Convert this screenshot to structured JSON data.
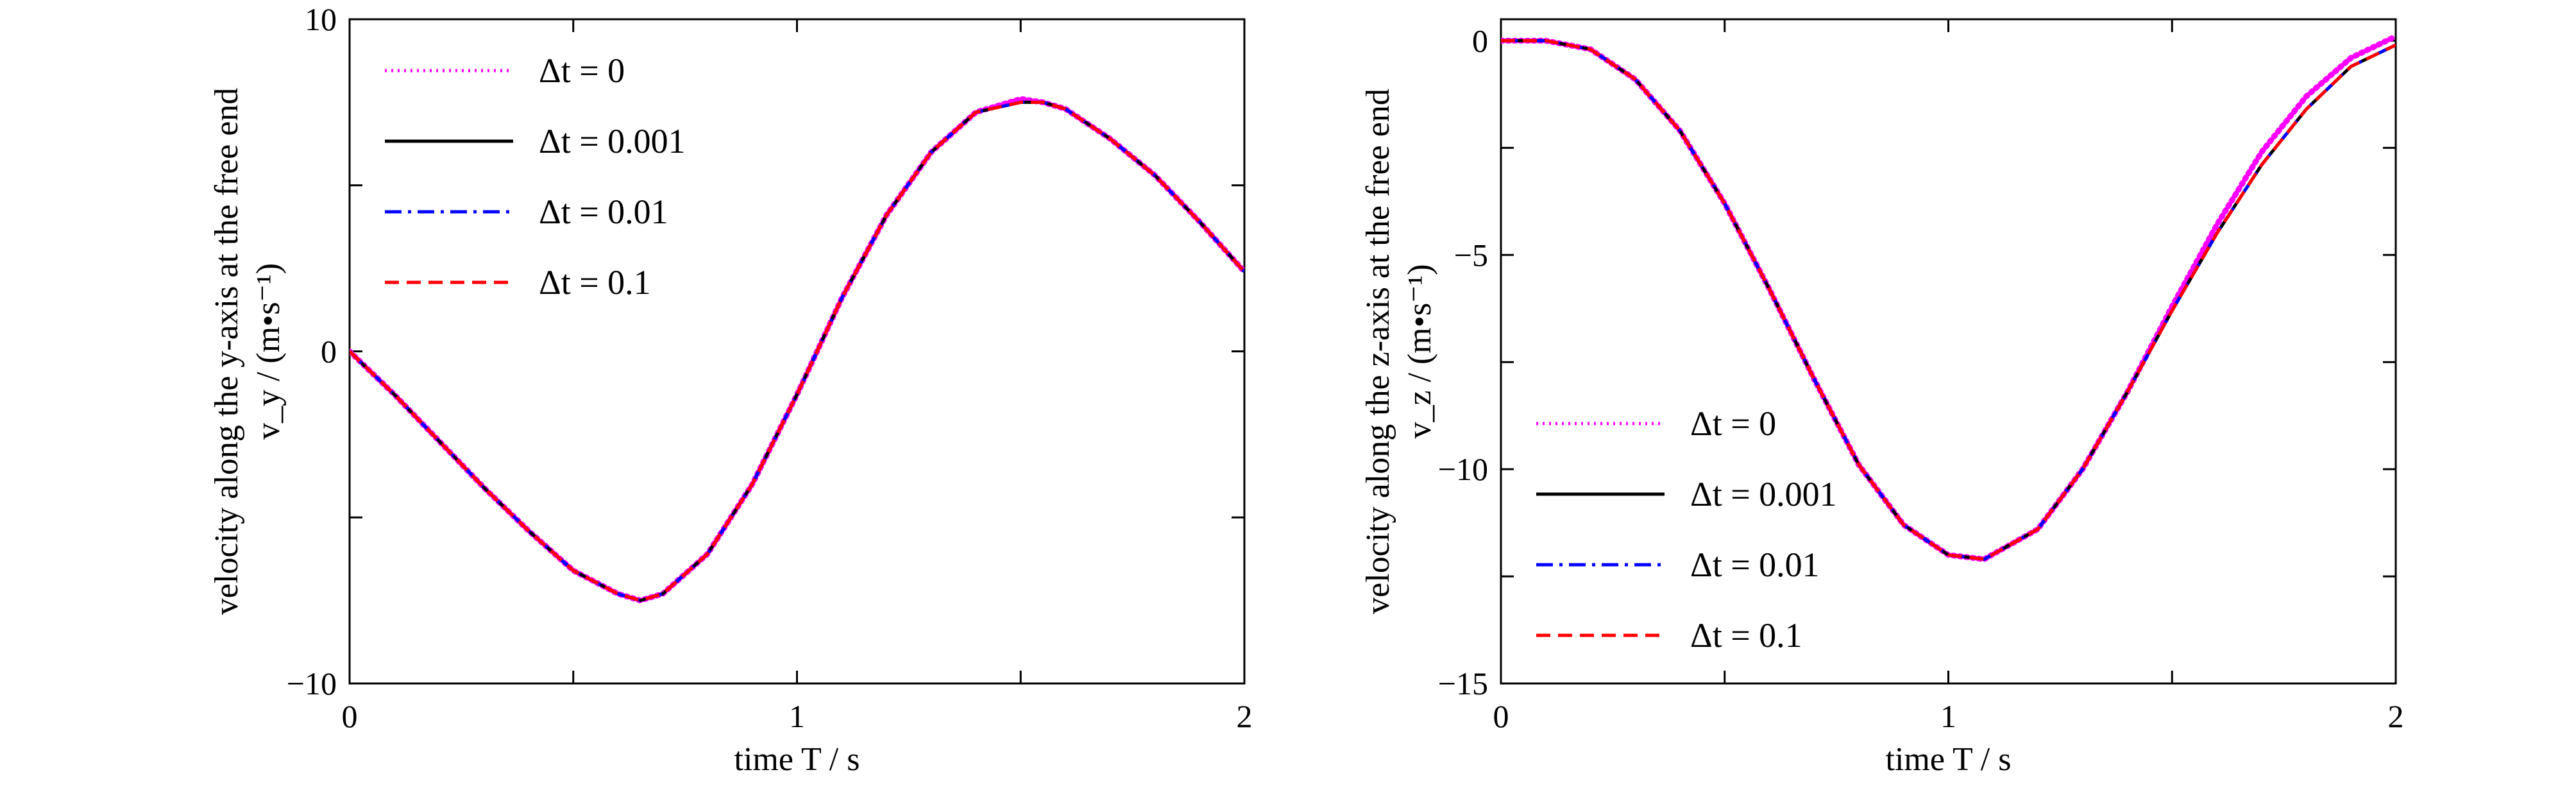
{
  "chart_data": [
    {
      "type": "line",
      "xlabel": "time T / s",
      "ylabel_line1": "velocity along the y-axis at the free end",
      "ylabel_line2": "v_y / (m•s⁻¹)",
      "xlim": [
        0,
        2
      ],
      "ylim": [
        -10,
        10
      ],
      "xticks": [
        0,
        1,
        2
      ],
      "xtick_labels": [
        "0",
        "1",
        "2"
      ],
      "yticks": [
        -10,
        0,
        10
      ],
      "ytick_labels": [
        "−10",
        "0",
        "10"
      ],
      "grid": false,
      "legend_position": "top-left",
      "x": [
        0,
        0.1,
        0.2,
        0.3,
        0.4,
        0.5,
        0.6,
        0.65,
        0.7,
        0.8,
        0.9,
        1.0,
        1.1,
        1.2,
        1.3,
        1.4,
        1.5,
        1.55,
        1.6,
        1.7,
        1.8,
        1.9,
        2.0
      ],
      "series": [
        {
          "name": "Δt = 0",
          "color": "#ff00ff",
          "dash": "dotted",
          "values": [
            0,
            -1.3,
            -2.7,
            -4.1,
            -5.4,
            -6.6,
            -7.3,
            -7.5,
            -7.3,
            -6.1,
            -4.0,
            -1.3,
            1.6,
            4.1,
            6.0,
            7.2,
            7.6,
            7.5,
            7.3,
            6.4,
            5.3,
            3.9,
            2.4
          ]
        },
        {
          "name": "Δt = 0.001",
          "color": "#000000",
          "dash": "solid",
          "values": [
            0,
            -1.3,
            -2.7,
            -4.1,
            -5.4,
            -6.6,
            -7.3,
            -7.5,
            -7.3,
            -6.1,
            -4.0,
            -1.3,
            1.6,
            4.1,
            6.0,
            7.2,
            7.5,
            7.5,
            7.3,
            6.4,
            5.3,
            3.9,
            2.4
          ]
        },
        {
          "name": "Δt = 0.01",
          "color": "#0000ff",
          "dash": "dashdot",
          "values": [
            0,
            -1.3,
            -2.7,
            -4.1,
            -5.4,
            -6.6,
            -7.3,
            -7.5,
            -7.3,
            -6.1,
            -4.0,
            -1.3,
            1.6,
            4.1,
            6.0,
            7.2,
            7.5,
            7.5,
            7.3,
            6.4,
            5.3,
            3.9,
            2.4
          ]
        },
        {
          "name": "Δt = 0.1",
          "color": "#ff0000",
          "dash": "dashed",
          "values": [
            0,
            -1.3,
            -2.7,
            -4.1,
            -5.4,
            -6.6,
            -7.3,
            -7.5,
            -7.3,
            -6.1,
            -4.0,
            -1.3,
            1.6,
            4.1,
            6.0,
            7.2,
            7.5,
            7.5,
            7.3,
            6.4,
            5.3,
            3.9,
            2.4
          ]
        }
      ]
    },
    {
      "type": "line",
      "xlabel": "time T / s",
      "ylabel_line1": "velocity along the z-axis at the free end",
      "ylabel_line2": "v_z / (m•s⁻¹)",
      "xlim": [
        0,
        2
      ],
      "ylim": [
        -15,
        0.5
      ],
      "xticks": [
        0,
        1,
        2
      ],
      "xtick_labels": [
        "0",
        "1",
        "2"
      ],
      "yticks": [
        -15,
        -10,
        -5,
        0
      ],
      "ytick_labels": [
        "−15",
        "−10",
        "−5",
        "0"
      ],
      "grid": false,
      "legend_position": "lower-left",
      "x": [
        0,
        0.1,
        0.2,
        0.3,
        0.4,
        0.5,
        0.6,
        0.7,
        0.8,
        0.9,
        1.0,
        1.08,
        1.2,
        1.3,
        1.4,
        1.5,
        1.6,
        1.7,
        1.8,
        1.9,
        2.0
      ],
      "series": [
        {
          "name": "Δt = 0",
          "color": "#ff00ff",
          "dash": "dotted",
          "values": [
            0,
            0,
            -0.2,
            -0.9,
            -2.1,
            -3.8,
            -5.8,
            -7.9,
            -9.9,
            -11.3,
            -12.0,
            -12.1,
            -11.4,
            -10.0,
            -8.2,
            -6.2,
            -4.3,
            -2.6,
            -1.3,
            -0.4,
            0.1
          ]
        },
        {
          "name": "Δt = 0.001",
          "color": "#000000",
          "dash": "solid",
          "values": [
            0,
            0,
            -0.2,
            -0.9,
            -2.1,
            -3.8,
            -5.8,
            -7.9,
            -9.9,
            -11.3,
            -12.0,
            -12.1,
            -11.4,
            -10.0,
            -8.2,
            -6.3,
            -4.5,
            -2.9,
            -1.6,
            -0.6,
            -0.1
          ]
        },
        {
          "name": "Δt = 0.01",
          "color": "#0000ff",
          "dash": "dashdot",
          "values": [
            0,
            0,
            -0.2,
            -0.9,
            -2.1,
            -3.8,
            -5.8,
            -7.9,
            -9.9,
            -11.3,
            -12.0,
            -12.1,
            -11.4,
            -10.0,
            -8.2,
            -6.3,
            -4.5,
            -2.9,
            -1.6,
            -0.6,
            -0.1
          ]
        },
        {
          "name": "Δt = 0.1",
          "color": "#ff0000",
          "dash": "dashed",
          "values": [
            0,
            0,
            -0.2,
            -0.9,
            -2.1,
            -3.8,
            -5.8,
            -7.9,
            -9.9,
            -11.3,
            -12.0,
            -12.1,
            -11.4,
            -10.0,
            -8.2,
            -6.3,
            -4.5,
            -2.9,
            -1.6,
            -0.6,
            -0.1
          ]
        }
      ]
    }
  ]
}
